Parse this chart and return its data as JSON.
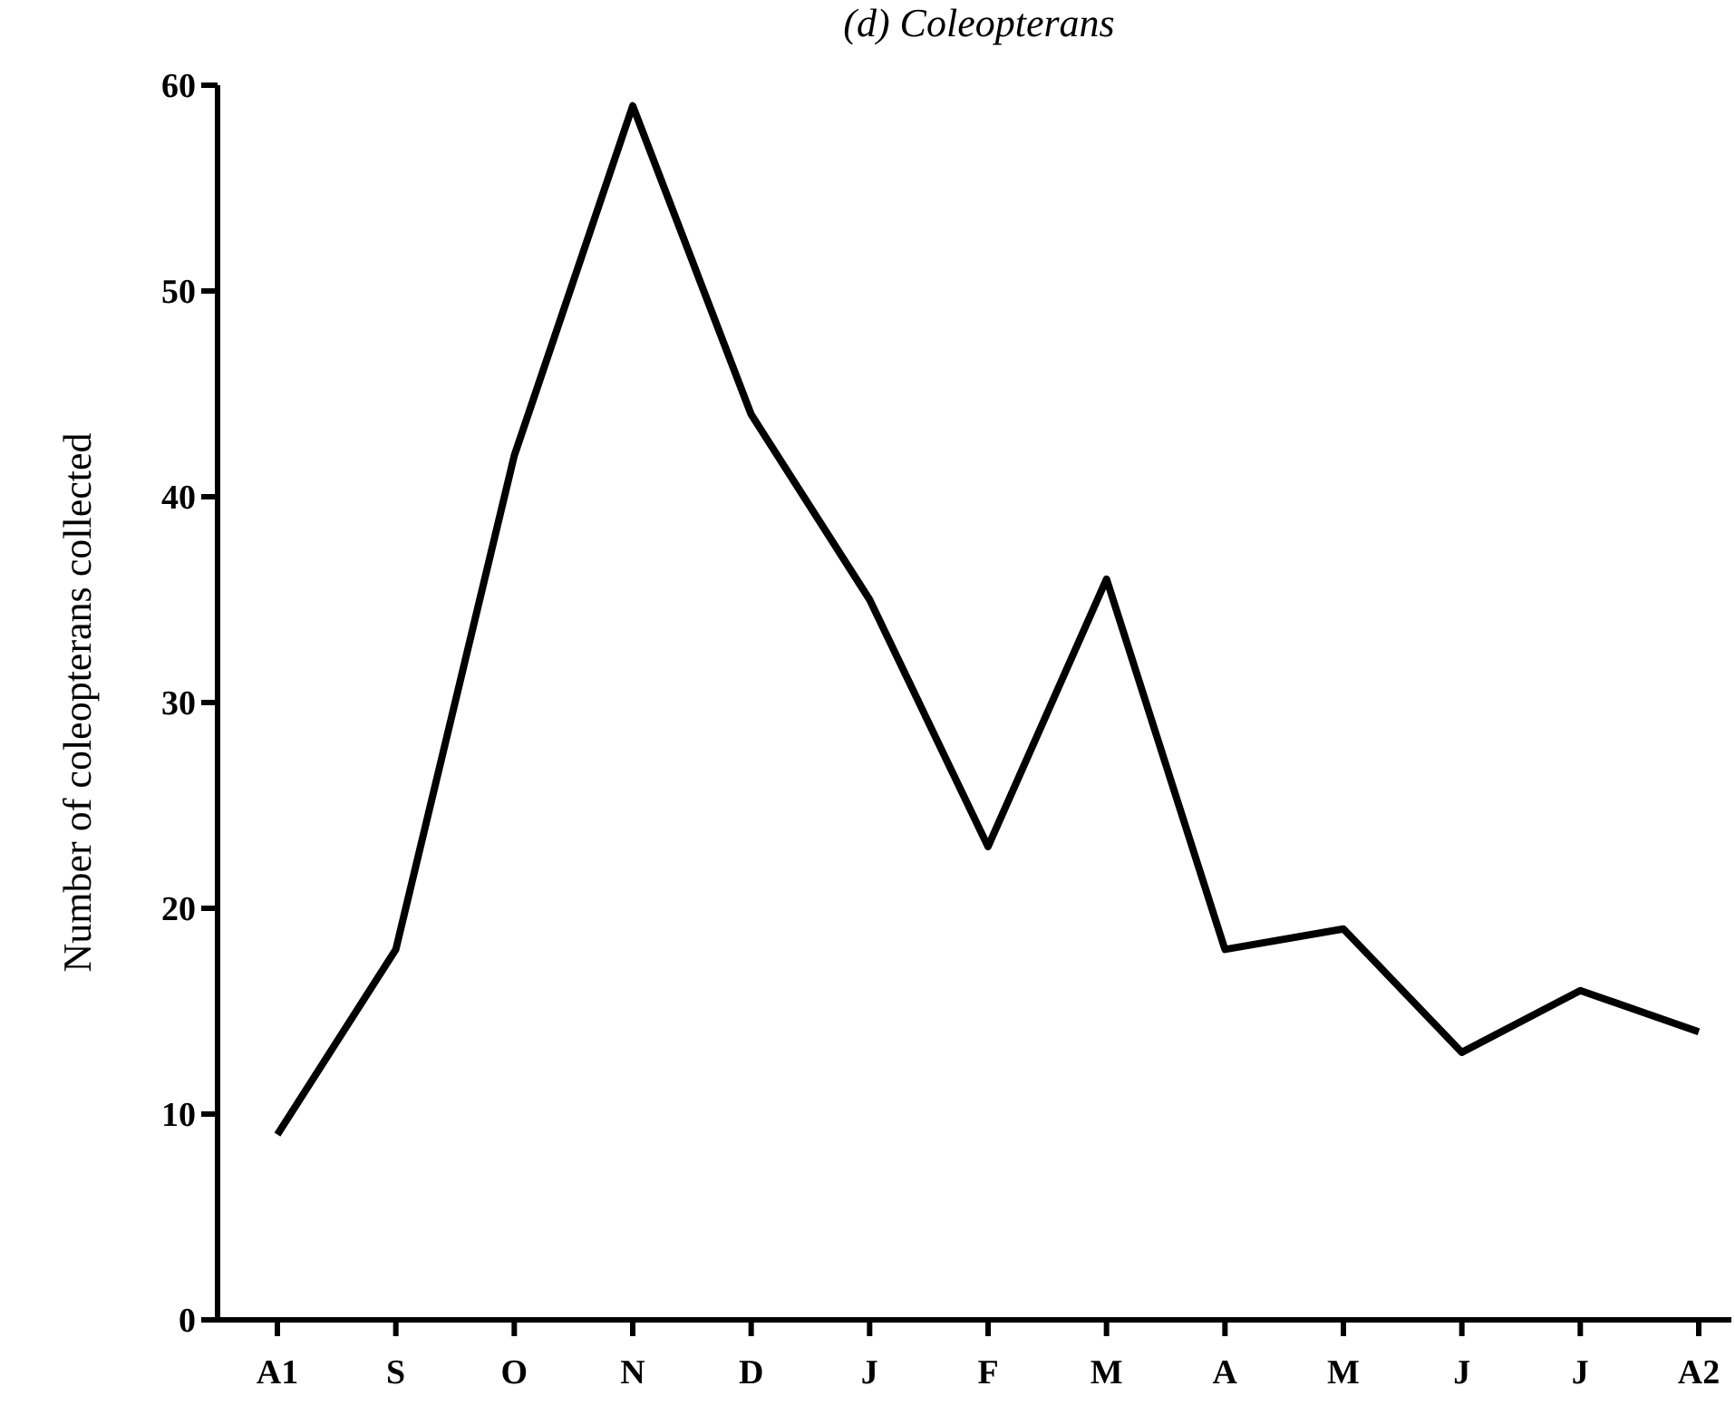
{
  "chart_data": {
    "type": "line",
    "title": "(d) Coleopterans",
    "ylabel": "Number of coleopterans collected",
    "categories": [
      "A1",
      "S",
      "O",
      "N",
      "D",
      "J",
      "F",
      "M",
      "A",
      "M",
      "J",
      "J",
      "A2"
    ],
    "series": [
      {
        "color": "#000000",
        "values": [
          9,
          18,
          42,
          59,
          44,
          35,
          23,
          36,
          18,
          19,
          13,
          16,
          14
        ]
      }
    ],
    "ylim": [
      0,
      60
    ],
    "yticks": [
      0,
      10,
      20,
      30,
      40,
      50,
      60
    ],
    "grid": false,
    "marker": "none",
    "line_style": "solid"
  }
}
